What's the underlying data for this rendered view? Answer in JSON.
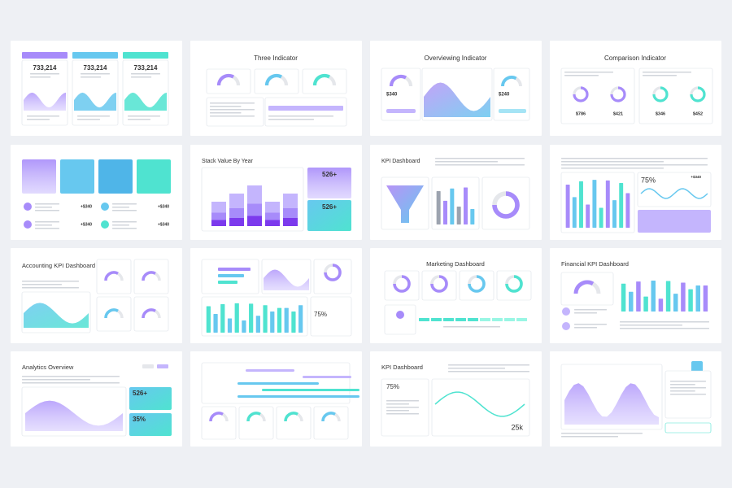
{
  "s1": {
    "stats": [
      "733,214",
      "733,214",
      "733,214"
    ]
  },
  "s2": {
    "title": "Three Indicator"
  },
  "s3": {
    "title": "Overviewing Indicator",
    "stats": [
      "$340",
      "$240"
    ]
  },
  "s4": {
    "title": "Comparison Indicator",
    "stats": [
      "$786",
      "$421",
      "$346",
      "$452"
    ]
  },
  "s5": {
    "stats": [
      "+$340",
      "+$340",
      "+$340",
      "+$340"
    ]
  },
  "s6": {
    "title": "Stack Value By Year",
    "stats": [
      "526+",
      "526+"
    ]
  },
  "s7": {
    "title": "KPI Dashboard"
  },
  "s8": {
    "stats": [
      "75%",
      "+$340"
    ]
  },
  "s9": {
    "title": "Accounting KPI Dashboard"
  },
  "s10": {
    "stats": [
      "75%"
    ]
  },
  "s11": {
    "title": "Marketing Dashboard"
  },
  "s12": {
    "title": "Financial KPI Dashboard"
  },
  "s13": {
    "title": "Analytics Overview",
    "stats": [
      "526+",
      "35%"
    ]
  },
  "s15": {
    "title": "KPI Dashboard",
    "stats": [
      "75%",
      "25k"
    ]
  }
}
